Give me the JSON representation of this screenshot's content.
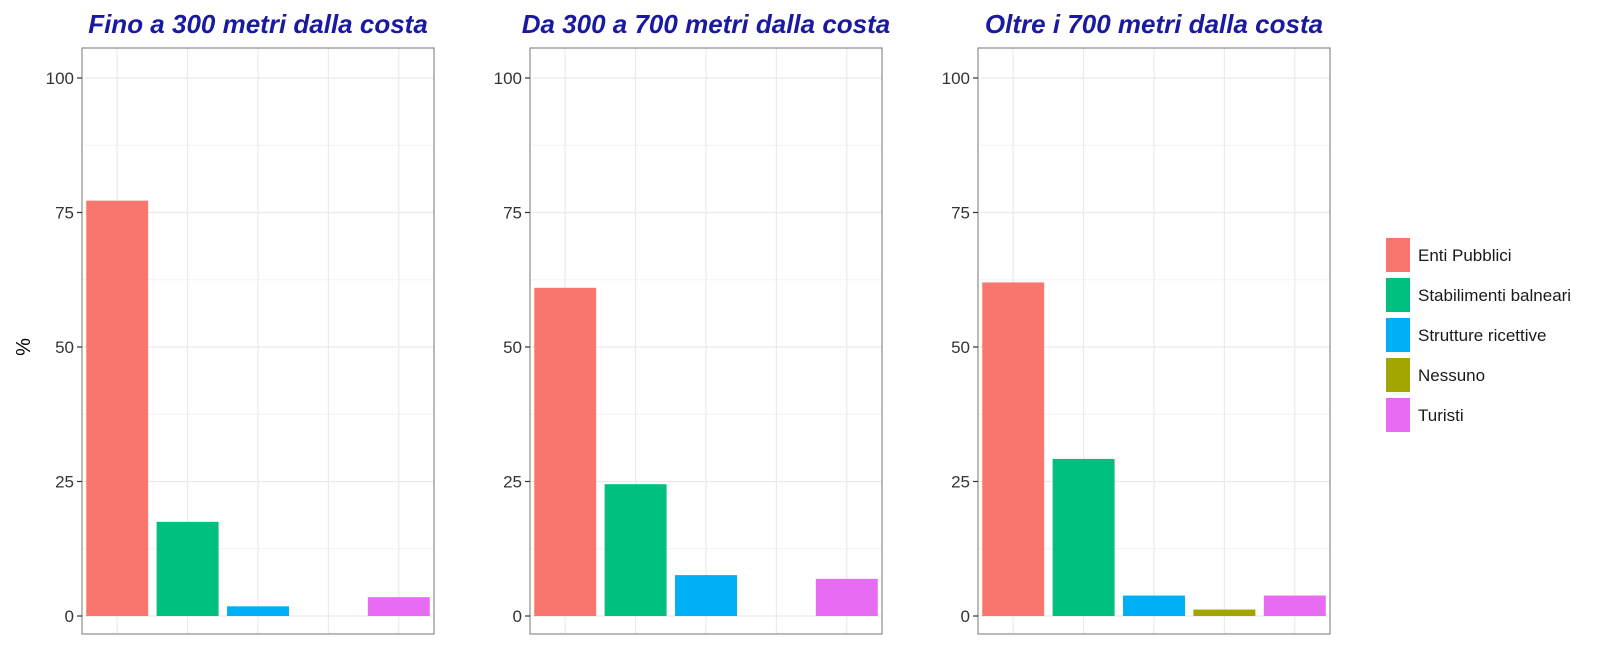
{
  "chart_data": {
    "type": "bar",
    "ylabel": "%",
    "ylim": [
      0,
      100
    ],
    "yticks": [
      0,
      25,
      50,
      75,
      100
    ],
    "grid": true,
    "legend_position": "right",
    "categories": [
      "Enti Pubblici",
      "Stabilimenti balneari",
      "Strutture ricettive",
      "Nessuno",
      "Turisti"
    ],
    "colors": [
      "#f8766d",
      "#00c07f",
      "#00b0f6",
      "#a3a500",
      "#e76bf3"
    ],
    "panels": [
      {
        "title": "Fino a 300 metri dalla costa",
        "values": [
          77.2,
          17.5,
          1.8,
          0,
          3.5
        ]
      },
      {
        "title": "Da 300 a 700 metri dalla costa",
        "values": [
          61.0,
          24.5,
          7.6,
          0,
          6.9
        ]
      },
      {
        "title": "Oltre i 700 metri dalla costa",
        "values": [
          62.0,
          29.2,
          3.8,
          1.2,
          3.8
        ]
      }
    ]
  }
}
